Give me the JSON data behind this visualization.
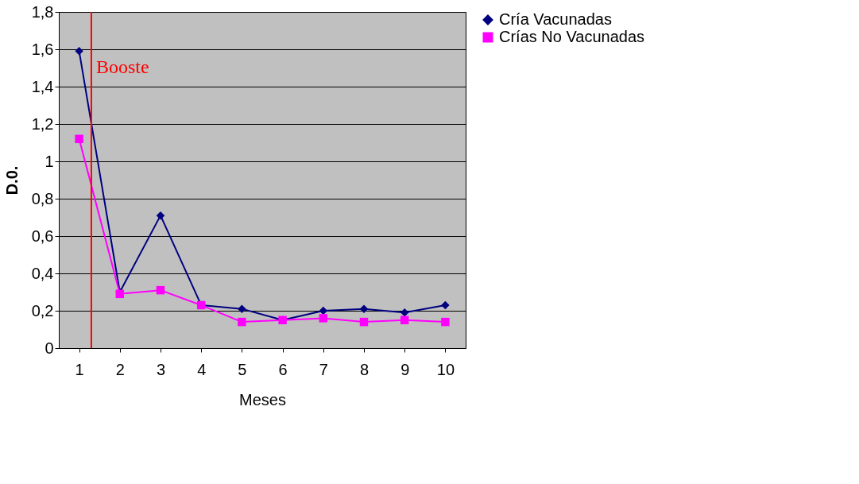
{
  "chart_data": {
    "type": "line",
    "xlabel": "Meses",
    "ylabel": "D.0.",
    "x": [
      1,
      2,
      3,
      4,
      5,
      6,
      7,
      8,
      9,
      10
    ],
    "xlim": [
      0.5,
      10.5
    ],
    "xticks": [
      1,
      2,
      3,
      4,
      5,
      6,
      7,
      8,
      9,
      10
    ],
    "ylim": [
      0,
      1.8
    ],
    "yticks": [
      0,
      {
        "value": 0.2,
        "label": "0,2"
      },
      {
        "value": 0.4,
        "label": "0,4"
      },
      {
        "value": 0.6,
        "label": "0,6"
      },
      {
        "value": 0.8,
        "label": "0,8"
      },
      1,
      {
        "value": 1.2,
        "label": "1,2"
      },
      {
        "value": 1.4,
        "label": "1,4"
      },
      {
        "value": 1.6,
        "label": "1,6"
      },
      {
        "value": 1.8,
        "label": "1,8"
      }
    ],
    "series": [
      {
        "name": "Cría Vacunadas",
        "color": "#000080",
        "marker": "diamond",
        "values": [
          1.59,
          0.3,
          0.71,
          0.23,
          0.21,
          0.15,
          0.2,
          0.21,
          0.19,
          0.23
        ]
      },
      {
        "name": "Crías No Vacunadas",
        "color": "#ff00ff",
        "marker": "square",
        "values": [
          1.12,
          0.29,
          0.31,
          0.23,
          0.14,
          0.15,
          0.16,
          0.14,
          0.15,
          0.14
        ]
      }
    ],
    "ref_lines": [
      {
        "axis": "x",
        "value": 1.3,
        "label": "Booste",
        "color": "#ff0000"
      }
    ],
    "grid": "y",
    "legend": "right",
    "line_style": "solid"
  }
}
